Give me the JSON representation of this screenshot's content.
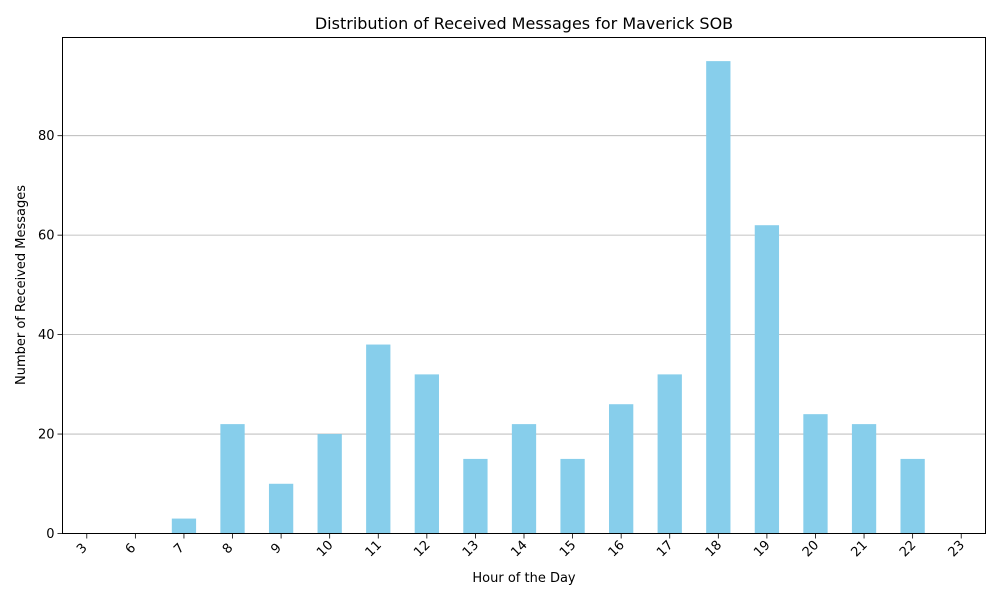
{
  "chart_data": {
    "type": "bar",
    "title": "Distribution of Received Messages for Maverick SOB",
    "xlabel": "Hour of the Day",
    "ylabel": "Number of Received Messages",
    "categories": [
      "3",
      "6",
      "7",
      "8",
      "9",
      "10",
      "11",
      "12",
      "13",
      "14",
      "15",
      "16",
      "17",
      "18",
      "19",
      "20",
      "21",
      "22",
      "23"
    ],
    "values": [
      0,
      0,
      3,
      22,
      10,
      20,
      38,
      32,
      15,
      22,
      15,
      26,
      32,
      95,
      62,
      24,
      22,
      15,
      0
    ],
    "ylim": [
      0,
      99.75
    ],
    "yticks": [
      0,
      20,
      40,
      60,
      80
    ],
    "ytick_labels": [
      "0",
      "20",
      "40",
      "60",
      "80"
    ],
    "grid": "y-major",
    "bar_color": "#87CEEB",
    "grid_color": "#b0b0b0",
    "legend": "none"
  }
}
